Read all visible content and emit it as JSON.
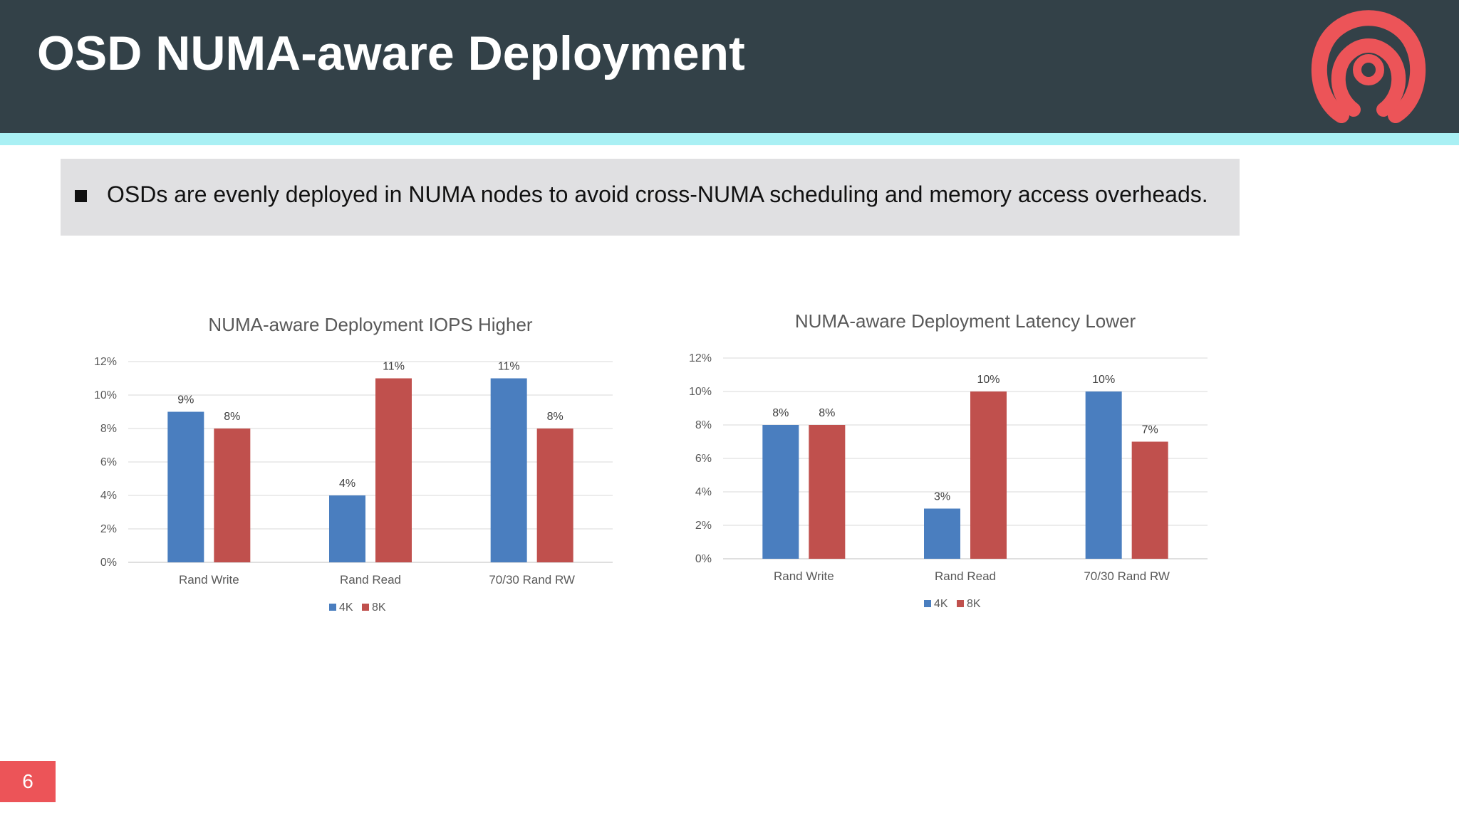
{
  "slide": {
    "title": "OSD NUMA-aware Deployment",
    "bullet": "OSDs are evenly deployed in NUMA nodes to avoid cross-NUMA scheduling and memory access overheads.",
    "page_number": "6",
    "logo_icon": "ceph-logo-icon"
  },
  "colors": {
    "header_bg": "#334148",
    "header_stripe": "#a9f0f4",
    "series_4k": "#4a7ebf",
    "series_8k": "#c0504d",
    "page_badge": "#ec5458"
  },
  "chart_data": [
    {
      "type": "bar",
      "title": "NUMA-aware Deployment IOPS Higher",
      "categories": [
        "Rand Write",
        "Rand Read",
        "70/30 Rand RW"
      ],
      "series": [
        {
          "name": "4K",
          "values": [
            9,
            4,
            11
          ],
          "labels": [
            "9%",
            "4%",
            "11%"
          ],
          "color": "#4a7ebf"
        },
        {
          "name": "8K",
          "values": [
            8,
            11,
            8
          ],
          "labels": [
            "8%",
            "11%",
            "8%"
          ],
          "color": "#c0504d"
        }
      ],
      "yticks": [
        "0%",
        "2%",
        "4%",
        "6%",
        "8%",
        "10%",
        "12%"
      ],
      "ylim": [
        0,
        12
      ],
      "grid": true,
      "legend": "bottom"
    },
    {
      "type": "bar",
      "title": "NUMA-aware Deployment Latency Lower",
      "categories": [
        "Rand Write",
        "Rand Read",
        "70/30 Rand RW"
      ],
      "series": [
        {
          "name": "4K",
          "values": [
            8,
            3,
            10
          ],
          "labels": [
            "8%",
            "3%",
            "10%"
          ],
          "color": "#4a7ebf"
        },
        {
          "name": "8K",
          "values": [
            8,
            10,
            7
          ],
          "labels": [
            "8%",
            "10%",
            "7%"
          ],
          "color": "#c0504d"
        }
      ],
      "yticks": [
        "0%",
        "2%",
        "4%",
        "6%",
        "8%",
        "10%",
        "12%"
      ],
      "ylim": [
        0,
        12
      ],
      "grid": true,
      "legend": "bottom"
    }
  ]
}
